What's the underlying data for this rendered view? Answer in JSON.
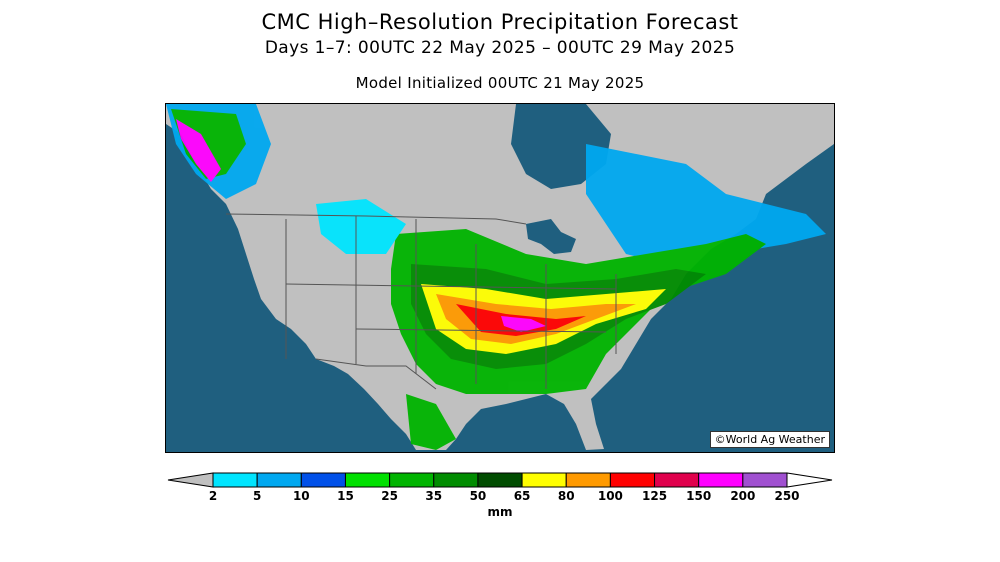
{
  "title": "CMC High–Resolution Precipitation Forecast",
  "subtitle": "Days 1–7: 00UTC 22 May 2025 – 00UTC 29 May 2025",
  "initialized": "Model Initialized 00UTC 21 May 2025",
  "credit": "©World Ag Weather",
  "legend": {
    "unit": "mm",
    "thresholds": [
      "2",
      "5",
      "10",
      "15",
      "25",
      "35",
      "50",
      "65",
      "80",
      "100",
      "125",
      "150",
      "200",
      "250"
    ],
    "below_color": "#c0c0c0",
    "colors": [
      "#00e5ff",
      "#00a8f0",
      "#0050e8",
      "#00e000",
      "#00b400",
      "#008c00",
      "#004c00",
      "#ffff00",
      "#ff9a00",
      "#ff0000",
      "#e0004c",
      "#ff00ff",
      "#a050d0"
    ],
    "above_color": "#ffffff"
  },
  "map_colors": {
    "ocean": "#1f5f7f",
    "land": "#c0c0c0",
    "lakes": "#1f5f7f",
    "borders": "#555555"
  }
}
